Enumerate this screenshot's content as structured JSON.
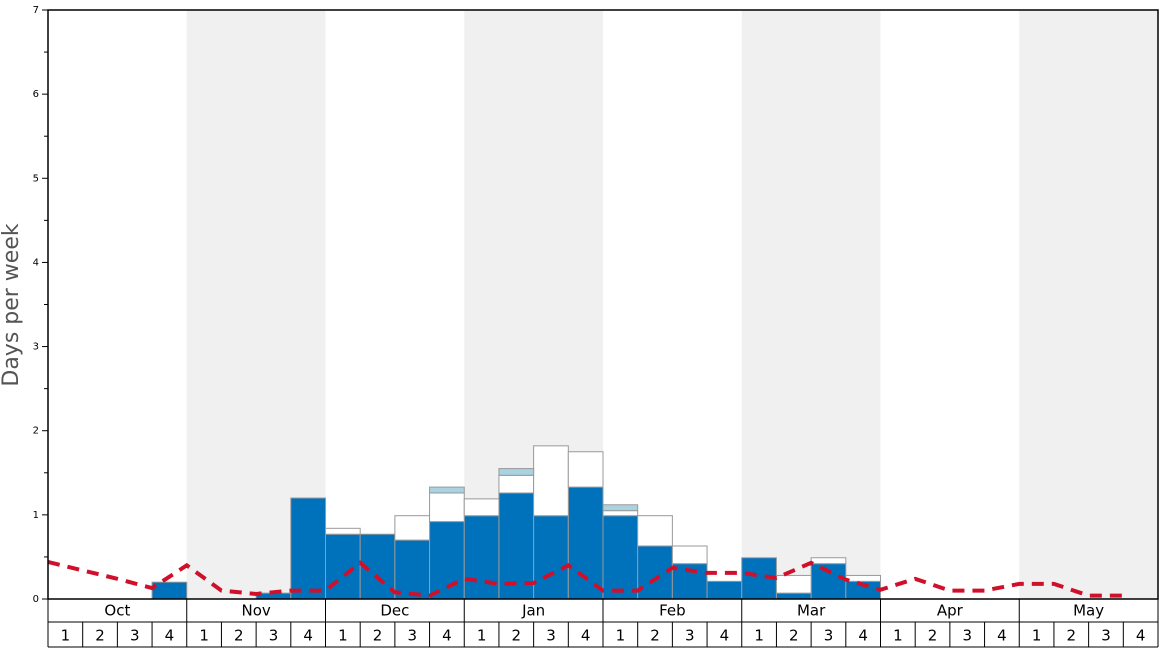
{
  "chart_data": {
    "type": "bar",
    "y_label": "Days per week",
    "months": [
      "Oct",
      "Nov",
      "Dec",
      "Jan",
      "Feb",
      "Mar",
      "Apr",
      "May"
    ],
    "categories": [
      "1",
      "2",
      "3",
      "4",
      "1",
      "2",
      "3",
      "4",
      "1",
      "2",
      "3",
      "4",
      "1",
      "2",
      "3",
      "4",
      "1",
      "2",
      "3",
      "4",
      "1",
      "2",
      "3",
      "4",
      "1",
      "2",
      "3",
      "4",
      "1",
      "2",
      "3",
      "4"
    ],
    "ylim": [
      0,
      7
    ],
    "yticks": [
      0,
      1,
      2,
      3,
      4,
      5,
      6,
      7
    ],
    "series": [
      {
        "color": "#0072bc",
        "values": [
          0,
          0,
          0,
          0.2,
          0,
          0,
          0.07,
          1.2,
          0.77,
          0.77,
          0.7,
          0.92,
          0.99,
          1.26,
          0.99,
          1.33,
          0.99,
          0.63,
          0.42,
          0.21,
          0.49,
          0.07,
          0.42,
          0.21,
          0,
          0,
          0,
          0,
          0,
          0,
          0,
          0
        ]
      },
      {
        "color": "#ffffff",
        "values": [
          0,
          0,
          0,
          0,
          0,
          0,
          0,
          0,
          0.07,
          0,
          0.29,
          0.34,
          0.2,
          0.21,
          0.83,
          0.42,
          0.06,
          0.36,
          0.21,
          0,
          0,
          0.21,
          0.07,
          0.07,
          0,
          0,
          0,
          0,
          0,
          0,
          0,
          0
        ]
      },
      {
        "color": "#a9d3e0",
        "values": [
          0,
          0,
          0,
          0,
          0,
          0,
          0,
          0,
          0,
          0,
          0,
          0.07,
          0,
          0.08,
          0,
          0,
          0.07,
          0,
          0,
          0,
          0,
          0,
          0,
          0,
          0,
          0,
          0,
          0,
          0,
          0,
          0,
          0
        ]
      },
      {
        "type": "line",
        "color": "#d0102a",
        "values": [
          0.44,
          0.34,
          0.24,
          0.13,
          0.4,
          0.1,
          0.06,
          0.1,
          0.1,
          0.43,
          0.08,
          0.04,
          0.24,
          0.18,
          0.19,
          0.4,
          0.1,
          0.1,
          0.37,
          0.31,
          0.31,
          0.25,
          0.43,
          0.23,
          0.11,
          0.24,
          0.1,
          0.1,
          0.18,
          0.18,
          0.04,
          0.04
        ]
      }
    ]
  }
}
